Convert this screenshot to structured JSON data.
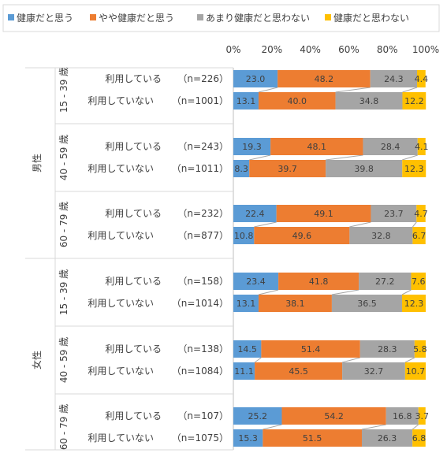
{
  "chart_data": {
    "type": "bar",
    "stacked": "percent",
    "orientation": "horizontal",
    "legend_position": "top",
    "xlim": [
      0,
      100
    ],
    "x_ticks": [
      "0%",
      "20%",
      "40%",
      "60%",
      "80%",
      "100%"
    ],
    "series": [
      {
        "name": "健康だと思う",
        "color": "#5B9BD5"
      },
      {
        "name": "やや健康だと思う",
        "color": "#ED7D31"
      },
      {
        "name": "あまり健康だと思わない",
        "color": "#A5A5A5"
      },
      {
        "name": "健康だと思わない",
        "color": "#FFC000"
      }
    ],
    "genders": [
      {
        "label": "男性",
        "groups": [
          {
            "age": "15 - 39 歳",
            "rows": [
              {
                "label": "利用している",
                "n": "（n=226）",
                "values": [
                  23.0,
                  48.2,
                  24.3,
                  4.4
                ],
                "labels": [
                  "23.0",
                  "48.2",
                  "24.3",
                  "4.4"
                ]
              },
              {
                "label": "利用していない",
                "n": "（n=1001）",
                "values": [
                  13.1,
                  40.0,
                  34.8,
                  12.2
                ],
                "labels": [
                  "13.1",
                  "40.0",
                  "34.8",
                  "12.2"
                ]
              }
            ]
          },
          {
            "age": "40 - 59 歳",
            "rows": [
              {
                "label": "利用している",
                "n": "（n=243）",
                "values": [
                  19.3,
                  48.1,
                  28.4,
                  4.1
                ],
                "labels": [
                  "19.3",
                  "48.1",
                  "28.4",
                  "4.1"
                ]
              },
              {
                "label": "利用していない",
                "n": "（n=1011）",
                "values": [
                  8.3,
                  39.7,
                  39.8,
                  12.3
                ],
                "labels": [
                  "8.3",
                  "39.7",
                  "39.8",
                  "12.3"
                ]
              }
            ]
          },
          {
            "age": "60 - 79 歳",
            "rows": [
              {
                "label": "利用している",
                "n": "（n=232）",
                "values": [
                  22.4,
                  49.1,
                  23.7,
                  4.7
                ],
                "labels": [
                  "22.4",
                  "49.1",
                  "23.7",
                  "4.7"
                ]
              },
              {
                "label": "利用していない",
                "n": "（n=877）",
                "values": [
                  10.8,
                  49.6,
                  32.8,
                  6.7
                ],
                "labels": [
                  "10.8",
                  "49.6",
                  "32.8",
                  "6.7"
                ]
              }
            ]
          }
        ]
      },
      {
        "label": "女性",
        "groups": [
          {
            "age": "15 - 39 歳",
            "rows": [
              {
                "label": "利用している",
                "n": "（n=158）",
                "values": [
                  23.4,
                  41.8,
                  27.2,
                  7.6
                ],
                "labels": [
                  "23.4",
                  "41.8",
                  "27.2",
                  "7.6"
                ]
              },
              {
                "label": "利用していない",
                "n": "（n=1014）",
                "values": [
                  13.1,
                  38.1,
                  36.5,
                  12.3
                ],
                "labels": [
                  "13.1",
                  "38.1",
                  "36.5",
                  "12.3"
                ]
              }
            ]
          },
          {
            "age": "40 - 59 歳",
            "rows": [
              {
                "label": "利用している",
                "n": "（n=138）",
                "values": [
                  14.5,
                  51.4,
                  28.3,
                  5.8
                ],
                "labels": [
                  "14.5",
                  "51.4",
                  "28.3",
                  "5.8"
                ]
              },
              {
                "label": "利用していない",
                "n": "（n=1084）",
                "values": [
                  11.1,
                  45.5,
                  32.7,
                  10.7
                ],
                "labels": [
                  "11.1",
                  "45.5",
                  "32.7",
                  "10.7"
                ]
              }
            ]
          },
          {
            "age": "60 - 79 歳",
            "rows": [
              {
                "label": "利用している",
                "n": "（n=107）",
                "values": [
                  25.2,
                  54.2,
                  16.8,
                  3.7
                ],
                "labels": [
                  "25.2",
                  "54.2",
                  "16.8",
                  "3.7"
                ]
              },
              {
                "label": "利用していない",
                "n": "（n=1075）",
                "values": [
                  15.3,
                  51.5,
                  26.3,
                  6.8
                ],
                "labels": [
                  "15.3",
                  "51.5",
                  "26.3",
                  "6.8"
                ]
              }
            ]
          }
        ]
      }
    ]
  }
}
